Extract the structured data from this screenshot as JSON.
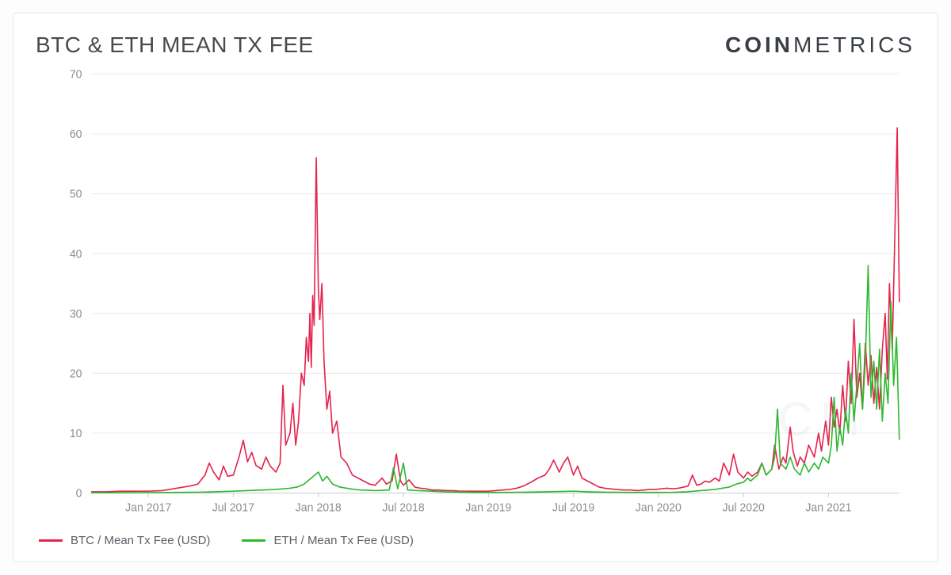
{
  "header": {
    "title": "BTC & ETH MEAN TX FEE",
    "brand_bold": "COIN",
    "brand_light": "METRICS"
  },
  "chart": {
    "type": "line",
    "background_color": "#ffffff",
    "grid_color": "#e9ecef",
    "baseline_color": "#c8ccd1",
    "axis_text_color": "#888f96",
    "axis_fontsize": 14,
    "ylim": [
      0,
      70
    ],
    "yticks": [
      0,
      10,
      20,
      30,
      40,
      50,
      60,
      70
    ],
    "x_start_months": 0,
    "x_end_months": 57,
    "xtick_months": [
      4,
      10,
      16,
      22,
      28,
      34,
      40,
      46,
      52
    ],
    "xtick_labels": [
      "Jan 2017",
      "Jul 2017",
      "Jan 2018",
      "Jul 2018",
      "Jan 2019",
      "Jul 2019",
      "Jan 2020",
      "Jul 2020",
      "Jan 2021"
    ],
    "line_width": 1.6,
    "series": [
      {
        "name": "btc",
        "label": "BTC / Mean Tx Fee (USD)",
        "color": "#e5244f",
        "points": [
          [
            0,
            0.2
          ],
          [
            1,
            0.2
          ],
          [
            2,
            0.3
          ],
          [
            3,
            0.3
          ],
          [
            4,
            0.3
          ],
          [
            5,
            0.4
          ],
          [
            5.5,
            0.6
          ],
          [
            6,
            0.8
          ],
          [
            6.5,
            1.0
          ],
          [
            7,
            1.2
          ],
          [
            7.5,
            1.5
          ],
          [
            8,
            3.0
          ],
          [
            8.3,
            5.0
          ],
          [
            8.6,
            3.5
          ],
          [
            9,
            2.2
          ],
          [
            9.3,
            4.5
          ],
          [
            9.6,
            2.8
          ],
          [
            10,
            3.0
          ],
          [
            10.4,
            6.0
          ],
          [
            10.7,
            8.8
          ],
          [
            11,
            5.2
          ],
          [
            11.3,
            6.8
          ],
          [
            11.6,
            4.6
          ],
          [
            12,
            4.0
          ],
          [
            12.3,
            6.0
          ],
          [
            12.6,
            4.5
          ],
          [
            13,
            3.5
          ],
          [
            13.3,
            5.0
          ],
          [
            13.5,
            18.0
          ],
          [
            13.7,
            8.0
          ],
          [
            14,
            10.0
          ],
          [
            14.2,
            15.0
          ],
          [
            14.4,
            8.0
          ],
          [
            14.6,
            12.0
          ],
          [
            14.8,
            20.0
          ],
          [
            15,
            18.0
          ],
          [
            15.15,
            26.0
          ],
          [
            15.3,
            22.0
          ],
          [
            15.4,
            30.0
          ],
          [
            15.5,
            21.0
          ],
          [
            15.6,
            33.0
          ],
          [
            15.7,
            28.0
          ],
          [
            15.85,
            56.0
          ],
          [
            16,
            34.0
          ],
          [
            16.1,
            29.0
          ],
          [
            16.25,
            35.0
          ],
          [
            16.4,
            22.0
          ],
          [
            16.6,
            14.0
          ],
          [
            16.8,
            17.0
          ],
          [
            17,
            10.0
          ],
          [
            17.3,
            12.0
          ],
          [
            17.6,
            6.0
          ],
          [
            18,
            5.0
          ],
          [
            18.4,
            3.0
          ],
          [
            18.8,
            2.5
          ],
          [
            19.2,
            2.0
          ],
          [
            19.6,
            1.5
          ],
          [
            20,
            1.3
          ],
          [
            20.5,
            2.5
          ],
          [
            20.8,
            1.5
          ],
          [
            21.2,
            2.0
          ],
          [
            21.5,
            6.5
          ],
          [
            21.8,
            2.0
          ],
          [
            22,
            1.3
          ],
          [
            22.4,
            2.2
          ],
          [
            22.8,
            1.0
          ],
          [
            23.2,
            0.8
          ],
          [
            23.6,
            0.7
          ],
          [
            24,
            0.5
          ],
          [
            24.5,
            0.5
          ],
          [
            25,
            0.4
          ],
          [
            25.5,
            0.4
          ],
          [
            26,
            0.3
          ],
          [
            26.5,
            0.3
          ],
          [
            27,
            0.3
          ],
          [
            27.5,
            0.3
          ],
          [
            28,
            0.3
          ],
          [
            28.5,
            0.4
          ],
          [
            29,
            0.5
          ],
          [
            29.5,
            0.6
          ],
          [
            30,
            0.8
          ],
          [
            30.5,
            1.2
          ],
          [
            31,
            1.8
          ],
          [
            31.5,
            2.5
          ],
          [
            32,
            3.0
          ],
          [
            32.3,
            4.0
          ],
          [
            32.6,
            5.5
          ],
          [
            33,
            3.5
          ],
          [
            33.3,
            5.0
          ],
          [
            33.6,
            6.0
          ],
          [
            34,
            3.0
          ],
          [
            34.3,
            4.5
          ],
          [
            34.6,
            2.5
          ],
          [
            35,
            2.0
          ],
          [
            35.4,
            1.5
          ],
          [
            35.8,
            1.0
          ],
          [
            36.2,
            0.8
          ],
          [
            36.6,
            0.7
          ],
          [
            37,
            0.6
          ],
          [
            37.5,
            0.5
          ],
          [
            38,
            0.5
          ],
          [
            38.5,
            0.4
          ],
          [
            39,
            0.5
          ],
          [
            39.4,
            0.6
          ],
          [
            39.8,
            0.6
          ],
          [
            40.2,
            0.7
          ],
          [
            40.6,
            0.8
          ],
          [
            41,
            0.7
          ],
          [
            41.4,
            0.8
          ],
          [
            41.8,
            1.0
          ],
          [
            42.1,
            1.2
          ],
          [
            42.4,
            3.0
          ],
          [
            42.7,
            1.3
          ],
          [
            43,
            1.5
          ],
          [
            43.3,
            2.0
          ],
          [
            43.6,
            1.8
          ],
          [
            44,
            2.5
          ],
          [
            44.3,
            2.0
          ],
          [
            44.6,
            5.0
          ],
          [
            45,
            3.0
          ],
          [
            45.3,
            6.5
          ],
          [
            45.6,
            3.5
          ],
          [
            46,
            2.5
          ],
          [
            46.3,
            3.5
          ],
          [
            46.6,
            2.8
          ],
          [
            47,
            3.5
          ],
          [
            47.3,
            5.0
          ],
          [
            47.6,
            3.0
          ],
          [
            48,
            4.0
          ],
          [
            48.2,
            8.0
          ],
          [
            48.5,
            4.0
          ],
          [
            48.8,
            6.0
          ],
          [
            49,
            5.0
          ],
          [
            49.3,
            11.0
          ],
          [
            49.5,
            7.0
          ],
          [
            49.8,
            4.5
          ],
          [
            50,
            6.0
          ],
          [
            50.3,
            5.0
          ],
          [
            50.6,
            8.0
          ],
          [
            51,
            6.0
          ],
          [
            51.3,
            10.0
          ],
          [
            51.5,
            7.0
          ],
          [
            51.8,
            12.0
          ],
          [
            52,
            8.0
          ],
          [
            52.2,
            16.0
          ],
          [
            52.4,
            11.0
          ],
          [
            52.6,
            14.0
          ],
          [
            52.8,
            10.0
          ],
          [
            53,
            18.0
          ],
          [
            53.2,
            12.0
          ],
          [
            53.4,
            22.0
          ],
          [
            53.6,
            15.0
          ],
          [
            53.8,
            29.0
          ],
          [
            54,
            16.0
          ],
          [
            54.2,
            20.0
          ],
          [
            54.4,
            14.0
          ],
          [
            54.6,
            25.0
          ],
          [
            54.8,
            18.0
          ],
          [
            55,
            23.0
          ],
          [
            55.2,
            15.0
          ],
          [
            55.4,
            21.0
          ],
          [
            55.6,
            14.0
          ],
          [
            55.8,
            24.0
          ],
          [
            56,
            30.0
          ],
          [
            56.15,
            19.0
          ],
          [
            56.3,
            35.0
          ],
          [
            56.5,
            24.0
          ],
          [
            56.7,
            45.0
          ],
          [
            56.85,
            61.0
          ],
          [
            57,
            32.0
          ]
        ]
      },
      {
        "name": "eth",
        "label": "ETH / Mean Tx Fee (USD)",
        "color": "#2fb92f",
        "points": [
          [
            0,
            0.05
          ],
          [
            2,
            0.05
          ],
          [
            4,
            0.06
          ],
          [
            6,
            0.1
          ],
          [
            8,
            0.15
          ],
          [
            10,
            0.3
          ],
          [
            12,
            0.5
          ],
          [
            13,
            0.6
          ],
          [
            14,
            0.8
          ],
          [
            14.5,
            1.0
          ],
          [
            15,
            1.5
          ],
          [
            15.5,
            2.5
          ],
          [
            16,
            3.5
          ],
          [
            16.3,
            2.0
          ],
          [
            16.6,
            2.8
          ],
          [
            17,
            1.5
          ],
          [
            17.5,
            1.0
          ],
          [
            18,
            0.8
          ],
          [
            18.5,
            0.6
          ],
          [
            19,
            0.5
          ],
          [
            20,
            0.4
          ],
          [
            21,
            0.5
          ],
          [
            21.3,
            4.2
          ],
          [
            21.6,
            0.7
          ],
          [
            22,
            5.0
          ],
          [
            22.3,
            0.5
          ],
          [
            23,
            0.4
          ],
          [
            24,
            0.3
          ],
          [
            25,
            0.2
          ],
          [
            26,
            0.15
          ],
          [
            27,
            0.1
          ],
          [
            28,
            0.1
          ],
          [
            29,
            0.1
          ],
          [
            30,
            0.12
          ],
          [
            31,
            0.15
          ],
          [
            32,
            0.2
          ],
          [
            33,
            0.25
          ],
          [
            34,
            0.3
          ],
          [
            35,
            0.2
          ],
          [
            36,
            0.15
          ],
          [
            37,
            0.12
          ],
          [
            38,
            0.1
          ],
          [
            39,
            0.1
          ],
          [
            40,
            0.1
          ],
          [
            41,
            0.12
          ],
          [
            42,
            0.2
          ],
          [
            42.5,
            0.3
          ],
          [
            43,
            0.4
          ],
          [
            43.5,
            0.5
          ],
          [
            44,
            0.6
          ],
          [
            44.5,
            0.8
          ],
          [
            45,
            1.0
          ],
          [
            45.5,
            1.5
          ],
          [
            46,
            1.8
          ],
          [
            46.3,
            2.5
          ],
          [
            46.5,
            2.0
          ],
          [
            47,
            3.0
          ],
          [
            47.3,
            5.0
          ],
          [
            47.6,
            3.0
          ],
          [
            48,
            4.0
          ],
          [
            48.2,
            6.0
          ],
          [
            48.4,
            14.0
          ],
          [
            48.6,
            5.0
          ],
          [
            49,
            4.0
          ],
          [
            49.3,
            6.0
          ],
          [
            49.6,
            4.0
          ],
          [
            50,
            3.0
          ],
          [
            50.3,
            5.0
          ],
          [
            50.6,
            3.5
          ],
          [
            51,
            5.0
          ],
          [
            51.3,
            4.0
          ],
          [
            51.6,
            6.0
          ],
          [
            52,
            5.0
          ],
          [
            52.2,
            8.0
          ],
          [
            52.4,
            16.0
          ],
          [
            52.6,
            7.0
          ],
          [
            52.8,
            11.0
          ],
          [
            53,
            8.0
          ],
          [
            53.2,
            14.0
          ],
          [
            53.4,
            10.0
          ],
          [
            53.6,
            20.0
          ],
          [
            53.8,
            12.0
          ],
          [
            54,
            18.0
          ],
          [
            54.2,
            25.0
          ],
          [
            54.4,
            14.0
          ],
          [
            54.6,
            22.0
          ],
          [
            54.8,
            38.0
          ],
          [
            55,
            16.0
          ],
          [
            55.2,
            22.0
          ],
          [
            55.4,
            14.0
          ],
          [
            55.6,
            24.0
          ],
          [
            55.8,
            12.0
          ],
          [
            56,
            20.0
          ],
          [
            56.2,
            15.0
          ],
          [
            56.4,
            32.0
          ],
          [
            56.6,
            18.0
          ],
          [
            56.8,
            26.0
          ],
          [
            57,
            9.0
          ]
        ]
      }
    ]
  },
  "legend": {
    "items": [
      {
        "key": "btc",
        "label": "BTC / Mean Tx Fee (USD)",
        "color": "#e5244f"
      },
      {
        "key": "eth",
        "label": "ETH / Mean Tx Fee (USD)",
        "color": "#2fb92f"
      }
    ]
  },
  "watermark": "CM"
}
